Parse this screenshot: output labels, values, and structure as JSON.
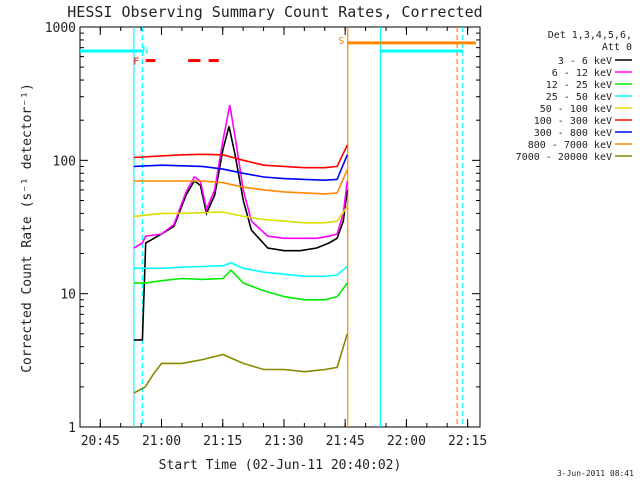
{
  "chart_data": {
    "type": "line",
    "title": "HESSI Observing Summary Count Rates, Corrected",
    "xlabel": "Start Time (02-Jun-11 20:40:02)",
    "ylabel": "Corrected Count Rate (s⁻¹ detector⁻¹)",
    "yscale": "log",
    "xlim_minutes": [
      0,
      98
    ],
    "ylim": [
      1,
      1000
    ],
    "x_ticks": [
      {
        "m": 4.97,
        "label": "20:45"
      },
      {
        "m": 19.97,
        "label": "21:00"
      },
      {
        "m": 34.97,
        "label": "21:15"
      },
      {
        "m": 49.97,
        "label": "21:30"
      },
      {
        "m": 64.97,
        "label": "21:45"
      },
      {
        "m": 79.97,
        "label": "22:00"
      },
      {
        "m": 94.97,
        "label": "22:15"
      }
    ],
    "y_ticks": [
      {
        "v": 1,
        "label": "1"
      },
      {
        "v": 10,
        "label": "10"
      },
      {
        "v": 100,
        "label": "100"
      },
      {
        "v": 1000,
        "label": "1000"
      }
    ],
    "legend": {
      "header": [
        "Det 1,3,4,5,6,",
        "Att 0"
      ],
      "placement": "right",
      "entries": [
        {
          "name": "3 - 6 keV",
          "color": "#000000"
        },
        {
          "name": "6 - 12 keV",
          "color": "#ff00ff"
        },
        {
          "name": "12 - 25 keV",
          "color": "#00ee00"
        },
        {
          "name": "25 - 50 keV",
          "color": "#00ffff"
        },
        {
          "name": "50 - 100 keV",
          "color": "#dddd00"
        },
        {
          "name": "100 - 300 keV",
          "color": "#ff0000"
        },
        {
          "name": "300 - 800 keV",
          "color": "#0000ff"
        },
        {
          "name": "800 - 7000 keV",
          "color": "#ff8800"
        },
        {
          "name": "7000 - 20000 keV",
          "color": "#888800"
        }
      ]
    },
    "series": [
      {
        "name": "3 - 6 keV",
        "color": "#000000",
        "points": [
          [
            13.2,
            4.5
          ],
          [
            15.3,
            4.5
          ],
          [
            16.1,
            24
          ],
          [
            20,
            28
          ],
          [
            23,
            32
          ],
          [
            26,
            55
          ],
          [
            28,
            70
          ],
          [
            29.5,
            65
          ],
          [
            31,
            40
          ],
          [
            33,
            55
          ],
          [
            35,
            120
          ],
          [
            36.5,
            180
          ],
          [
            38,
            110
          ],
          [
            40,
            50
          ],
          [
            42,
            30
          ],
          [
            46,
            22
          ],
          [
            50,
            21
          ],
          [
            54,
            21
          ],
          [
            58,
            22
          ],
          [
            61,
            24
          ],
          [
            63,
            26
          ],
          [
            64.5,
            35
          ],
          [
            65.5,
            60
          ]
        ]
      },
      {
        "name": "6 - 12 keV",
        "color": "#ff00ff",
        "points": [
          [
            13.2,
            22
          ],
          [
            15.3,
            24
          ],
          [
            16.1,
            27
          ],
          [
            20,
            28
          ],
          [
            23,
            33
          ],
          [
            26,
            58
          ],
          [
            28,
            75
          ],
          [
            29.5,
            70
          ],
          [
            31,
            43
          ],
          [
            33,
            60
          ],
          [
            35,
            140
          ],
          [
            36.7,
            260
          ],
          [
            38,
            150
          ],
          [
            40,
            60
          ],
          [
            42,
            35
          ],
          [
            46,
            27
          ],
          [
            50,
            26
          ],
          [
            54,
            26
          ],
          [
            58,
            26
          ],
          [
            61,
            27
          ],
          [
            63,
            28
          ],
          [
            64.5,
            40
          ],
          [
            65.5,
            70
          ]
        ]
      },
      {
        "name": "12 - 25 keV",
        "color": "#00ee00",
        "points": [
          [
            13.2,
            12
          ],
          [
            16,
            12
          ],
          [
            20,
            12.5
          ],
          [
            25,
            13
          ],
          [
            30,
            12.8
          ],
          [
            35,
            13
          ],
          [
            37,
            15
          ],
          [
            40,
            12
          ],
          [
            45,
            10.5
          ],
          [
            50,
            9.5
          ],
          [
            55,
            9
          ],
          [
            60,
            9
          ],
          [
            63,
            9.5
          ],
          [
            65.5,
            12
          ]
        ]
      },
      {
        "name": "25 - 50 keV",
        "color": "#00ffff",
        "points": [
          [
            13.2,
            15.5
          ],
          [
            20,
            15.5
          ],
          [
            25,
            15.8
          ],
          [
            30,
            16
          ],
          [
            35,
            16.2
          ],
          [
            37,
            17
          ],
          [
            40,
            15.5
          ],
          [
            45,
            14.5
          ],
          [
            50,
            14
          ],
          [
            55,
            13.5
          ],
          [
            60,
            13.5
          ],
          [
            63,
            13.8
          ],
          [
            65.5,
            16
          ]
        ]
      },
      {
        "name": "50 - 100 keV",
        "color": "#dddd00",
        "points": [
          [
            13.2,
            38
          ],
          [
            20,
            40
          ],
          [
            25,
            40
          ],
          [
            30,
            40.5
          ],
          [
            35,
            41
          ],
          [
            40,
            38
          ],
          [
            45,
            36
          ],
          [
            50,
            35
          ],
          [
            55,
            34
          ],
          [
            60,
            34
          ],
          [
            63,
            35
          ],
          [
            65.5,
            45
          ]
        ]
      },
      {
        "name": "100 - 300 keV",
        "color": "#ff0000",
        "points": [
          [
            13.2,
            105
          ],
          [
            20,
            108
          ],
          [
            25,
            110
          ],
          [
            30,
            111
          ],
          [
            35,
            110
          ],
          [
            40,
            100
          ],
          [
            45,
            92
          ],
          [
            50,
            90
          ],
          [
            55,
            88
          ],
          [
            60,
            88
          ],
          [
            63,
            90
          ],
          [
            65.5,
            130
          ]
        ]
      },
      {
        "name": "300 - 800 keV",
        "color": "#0000ff",
        "points": [
          [
            13.2,
            90
          ],
          [
            20,
            92
          ],
          [
            25,
            91
          ],
          [
            30,
            90
          ],
          [
            35,
            86
          ],
          [
            40,
            80
          ],
          [
            45,
            75
          ],
          [
            50,
            73
          ],
          [
            55,
            72
          ],
          [
            60,
            71
          ],
          [
            63,
            72
          ],
          [
            65.5,
            110
          ]
        ]
      },
      {
        "name": "800 - 7000 keV",
        "color": "#ff8800",
        "points": [
          [
            13.2,
            70
          ],
          [
            20,
            70
          ],
          [
            25,
            70
          ],
          [
            30,
            70
          ],
          [
            35,
            68
          ],
          [
            40,
            63
          ],
          [
            45,
            60
          ],
          [
            50,
            58
          ],
          [
            55,
            57
          ],
          [
            60,
            56
          ],
          [
            63,
            57
          ],
          [
            65.5,
            85
          ]
        ]
      },
      {
        "name": "7000 - 20000 keV",
        "color": "#888800",
        "points": [
          [
            13.2,
            1.8
          ],
          [
            16,
            2
          ],
          [
            18,
            2.5
          ],
          [
            20,
            3
          ],
          [
            25,
            3
          ],
          [
            30,
            3.2
          ],
          [
            35,
            3.5
          ],
          [
            40,
            3
          ],
          [
            45,
            2.7
          ],
          [
            50,
            2.7
          ],
          [
            55,
            2.6
          ],
          [
            60,
            2.7
          ],
          [
            63,
            2.8
          ],
          [
            65.5,
            5
          ]
        ]
      }
    ],
    "vlines": [
      {
        "m": 13.2,
        "color": "#00ffff",
        "style": "solid"
      },
      {
        "m": 15.3,
        "color": "#00ffff",
        "style": "dashed"
      },
      {
        "m": 65.6,
        "color": "#ff8800",
        "style": "solid"
      },
      {
        "m": 73.6,
        "color": "#00ffff",
        "style": "solid"
      },
      {
        "m": 92.4,
        "color": "#ff8800",
        "style": "dashed"
      },
      {
        "m": 93.8,
        "color": "#00ffff",
        "style": "dashed"
      }
    ],
    "flag_bars": [
      {
        "label": "N",
        "color": "#00ffff",
        "segments": [
          [
            0,
            15.3
          ],
          [
            73.6,
            93.8
          ]
        ],
        "y": 660
      },
      {
        "label": "F",
        "color": "#ff0000",
        "segments": [
          [
            16.1,
            18.5
          ],
          [
            26.5,
            29.5
          ],
          [
            31.5,
            34
          ]
        ],
        "y": 560
      },
      {
        "label": "S",
        "color": "#ff8800",
        "segments": [
          [
            65.6,
            97
          ]
        ],
        "y": 760
      }
    ],
    "flag_labels": [
      {
        "text": "N",
        "m": 16.0,
        "y": 680,
        "color": "#00ffff"
      },
      {
        "text": "F",
        "m": 13.8,
        "y": 560,
        "color": "#ff0000"
      },
      {
        "text": "S",
        "m": 64.0,
        "y": 800,
        "color": "#ff8800"
      }
    ],
    "timestamp": "3-Jun-2011 08:41"
  }
}
